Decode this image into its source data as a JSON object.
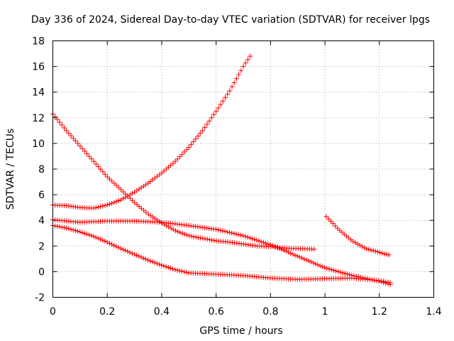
{
  "chart_data": {
    "type": "scatter",
    "title": "Day 336 of 2024, Sidereal Day-to-day VTEC variation (SDTVAR) for receiver lpgs",
    "xlabel": "GPS time / hours",
    "ylabel": "SDTVAR / TECUs",
    "xlim": [
      0,
      1.4
    ],
    "ylim": [
      -2,
      18
    ],
    "xticks": [
      0,
      0.2,
      0.4,
      0.6,
      0.8,
      1,
      1.2,
      1.4
    ],
    "yticks": [
      -2,
      0,
      2,
      4,
      6,
      8,
      10,
      12,
      14,
      16,
      18
    ],
    "xtick_labels": [
      "0",
      "0.2",
      "0.4",
      "0.6",
      "0.8",
      "1",
      "1.2",
      "1.4"
    ],
    "ytick_labels": [
      "-2",
      "0",
      "2",
      "4",
      "6",
      "8",
      "10",
      "12",
      "14",
      "16",
      "18"
    ],
    "grid": true,
    "marker": "+",
    "point_step_hours": 0.00833,
    "series": [
      {
        "name": "series-rising",
        "color": "#ff0000",
        "x_start": 0.0,
        "x_end": 0.725,
        "anchors": [
          [
            0,
            5.2
          ],
          [
            0.05,
            5.15
          ],
          [
            0.1,
            5.0
          ],
          [
            0.15,
            4.95
          ],
          [
            0.2,
            5.2
          ],
          [
            0.25,
            5.6
          ],
          [
            0.3,
            6.2
          ],
          [
            0.35,
            6.9
          ],
          [
            0.4,
            7.7
          ],
          [
            0.45,
            8.6
          ],
          [
            0.5,
            9.7
          ],
          [
            0.55,
            11.0
          ],
          [
            0.6,
            12.5
          ],
          [
            0.65,
            14.1
          ],
          [
            0.7,
            16.0
          ],
          [
            0.725,
            16.8
          ]
        ]
      },
      {
        "name": "series-falling-from-12",
        "color": "#ff0000",
        "x_start": 0.0,
        "x_end": 0.96,
        "anchors": [
          [
            0,
            12.3
          ],
          [
            0.05,
            11.0
          ],
          [
            0.1,
            9.8
          ],
          [
            0.15,
            8.6
          ],
          [
            0.2,
            7.4
          ],
          [
            0.25,
            6.4
          ],
          [
            0.3,
            5.4
          ],
          [
            0.35,
            4.5
          ],
          [
            0.4,
            3.8
          ],
          [
            0.45,
            3.2
          ],
          [
            0.5,
            2.8
          ],
          [
            0.55,
            2.6
          ],
          [
            0.6,
            2.4
          ],
          [
            0.65,
            2.3
          ],
          [
            0.7,
            2.15
          ],
          [
            0.75,
            2.0
          ],
          [
            0.8,
            1.95
          ],
          [
            0.85,
            1.85
          ],
          [
            0.9,
            1.8
          ],
          [
            0.96,
            1.75
          ]
        ]
      },
      {
        "name": "series-flat-then-down",
        "color": "#ff0000",
        "x_start": 0.0,
        "x_end": 1.24,
        "anchors": [
          [
            0,
            4.05
          ],
          [
            0.1,
            3.85
          ],
          [
            0.2,
            3.95
          ],
          [
            0.3,
            3.95
          ],
          [
            0.4,
            3.85
          ],
          [
            0.5,
            3.6
          ],
          [
            0.6,
            3.3
          ],
          [
            0.7,
            2.8
          ],
          [
            0.8,
            2.1
          ],
          [
            0.9,
            1.2
          ],
          [
            1.0,
            0.3
          ],
          [
            1.1,
            -0.3
          ],
          [
            1.2,
            -0.75
          ],
          [
            1.24,
            -1.0
          ]
        ]
      },
      {
        "name": "series-lower",
        "color": "#ff0000",
        "x_start": 0.0,
        "x_end": 1.24,
        "anchors": [
          [
            0,
            3.6
          ],
          [
            0.05,
            3.4
          ],
          [
            0.1,
            3.1
          ],
          [
            0.15,
            2.75
          ],
          [
            0.2,
            2.3
          ],
          [
            0.25,
            1.8
          ],
          [
            0.3,
            1.35
          ],
          [
            0.35,
            0.9
          ],
          [
            0.4,
            0.5
          ],
          [
            0.45,
            0.15
          ],
          [
            0.5,
            -0.1
          ],
          [
            0.6,
            -0.2
          ],
          [
            0.7,
            -0.3
          ],
          [
            0.8,
            -0.5
          ],
          [
            0.9,
            -0.6
          ],
          [
            1.0,
            -0.55
          ],
          [
            1.1,
            -0.5
          ],
          [
            1.2,
            -0.7
          ],
          [
            1.24,
            -0.85
          ]
        ]
      },
      {
        "name": "series-late-segment",
        "color": "#ff0000",
        "x_start": 1.005,
        "x_end": 1.235,
        "anchors": [
          [
            1.005,
            4.3
          ],
          [
            1.05,
            3.3
          ],
          [
            1.1,
            2.4
          ],
          [
            1.15,
            1.8
          ],
          [
            1.2,
            1.5
          ],
          [
            1.235,
            1.3
          ]
        ]
      }
    ]
  }
}
